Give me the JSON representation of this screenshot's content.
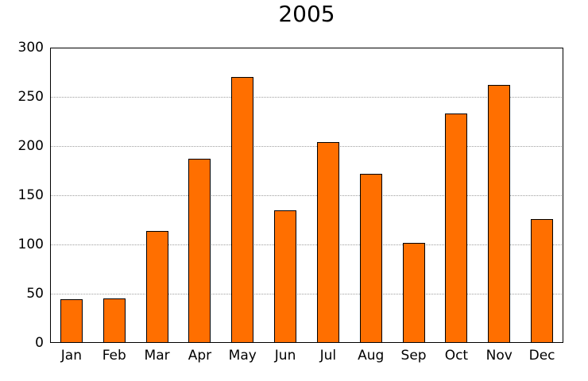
{
  "chart_data": {
    "type": "bar",
    "title": "2005",
    "categories": [
      "Jan",
      "Feb",
      "Mar",
      "Apr",
      "May",
      "Jun",
      "Jul",
      "Aug",
      "Sep",
      "Oct",
      "Nov",
      "Dec"
    ],
    "values": [
      44,
      45,
      114,
      187,
      270,
      135,
      204,
      172,
      102,
      233,
      262,
      126
    ],
    "xlabel": "",
    "ylabel": "",
    "ylim": [
      0,
      300
    ],
    "yticks": [
      0,
      50,
      100,
      150,
      200,
      250,
      300
    ],
    "grid": "horizontal-dotted",
    "legend": "none",
    "bar_color": "#ff6f00",
    "bar_edge_color": "#000000",
    "grid_color": "#9e9e9e",
    "frame_color": "#000000",
    "background_color": "#ffffff",
    "text_color": "#000000"
  }
}
